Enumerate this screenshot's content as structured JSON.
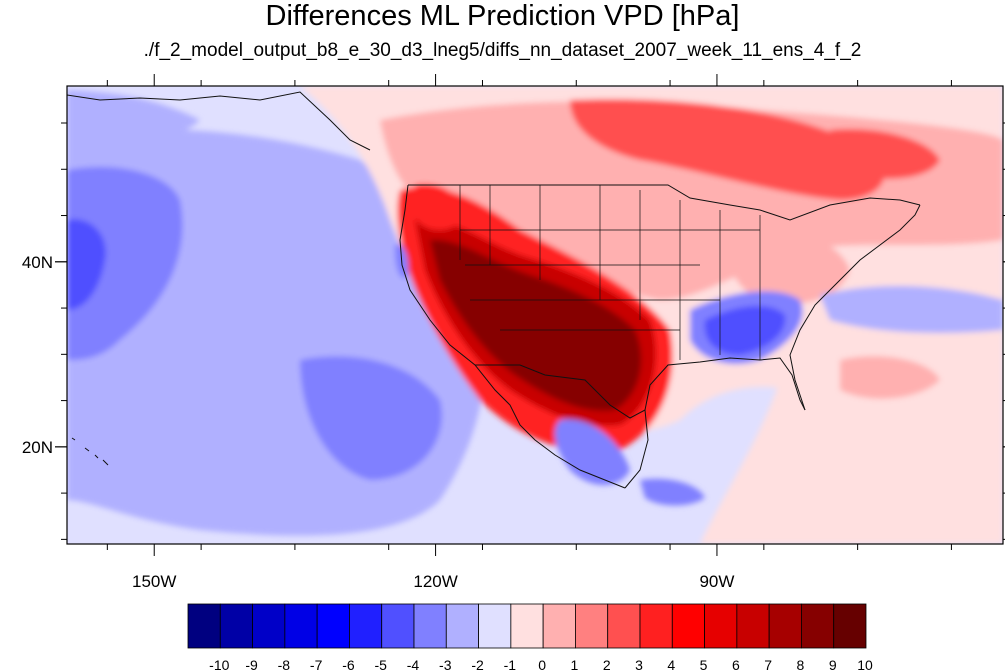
{
  "title": "Differences ML Prediction VPD [hPa]",
  "subtitle": "./f_2_model_output_b8_e_30_d3_lneg5/diffs_nn_dataset_2007_week_11_ens_4_f_2",
  "map": {
    "lon_range": [
      -159.3,
      -59.5
    ],
    "lat_range": [
      9.5,
      59
    ],
    "lat_ticks": [
      {
        "value": 40,
        "label": "40N"
      },
      {
        "value": 20,
        "label": "20N"
      }
    ],
    "lon_ticks": [
      {
        "value": -150,
        "label": "150W"
      },
      {
        "value": -120,
        "label": "120W"
      },
      {
        "value": -90,
        "label": "90W"
      }
    ]
  },
  "colorbar": {
    "labels": [
      "-10",
      "-9",
      "-8",
      "-7",
      "-6",
      "-5",
      "-4",
      "-3",
      "-2",
      "-1",
      "0",
      "1",
      "2",
      "3",
      "4",
      "5",
      "6",
      "7",
      "8",
      "9",
      "10"
    ],
    "colors": [
      "#000080",
      "#0000a6",
      "#0000c8",
      "#0000e6",
      "#0000ff",
      "#2020ff",
      "#5050ff",
      "#8080ff",
      "#b0b0ff",
      "#e0e0ff",
      "#ffe0e0",
      "#ffb0b0",
      "#ff8080",
      "#ff5050",
      "#ff2020",
      "#ff0000",
      "#e60000",
      "#c80000",
      "#a60000",
      "#860000",
      "#660000"
    ]
  },
  "palette": {
    "ocean_base": "#e0e0ff",
    "light_blue": "#b0b0ff",
    "mid_blue": "#8080ff",
    "strong_blue": "#5050ff",
    "pale_red": "#ffe0e0",
    "light_red": "#ffb0b0",
    "mid_red": "#ff8080",
    "red": "#ff5050",
    "strong_red": "#ff2020",
    "dark_red": "#c80000",
    "darkest_red": "#860000"
  }
}
